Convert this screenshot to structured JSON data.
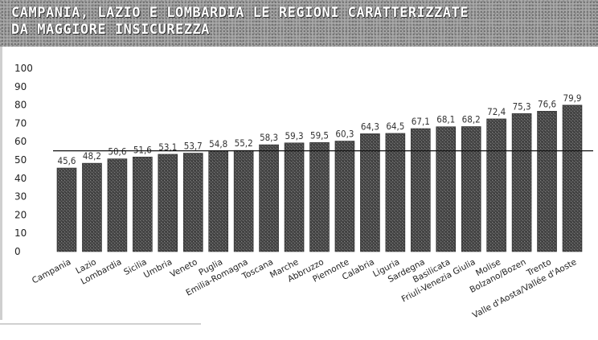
{
  "header": {
    "title_line1": "CAMPANIA, LAZIO E LOMBARDIA LE REGIONI CARATTERIZZATE",
    "title_line2": "DA MAGGIORE INSICUREZZA"
  },
  "chart_data": {
    "type": "bar",
    "title": "CAMPANIA, LAZIO E LOMBARDIA LE REGIONI CARATTERIZZATE DA MAGGIORE INSICUREZZA",
    "categories": [
      "Campania",
      "Lazio",
      "Lombardia",
      "Sicilia",
      "Umbria",
      "Veneto",
      "Puglia",
      "Emilia-Romagna",
      "Toscana",
      "Marche",
      "Abbruzzo",
      "Piemonte",
      "Calabria",
      "Liguria",
      "Sardegna",
      "Basilicata",
      "Friuli-Venezia Giulia",
      "Molise",
      "Bolzano/Bozen",
      "Trento",
      "Valle d'Aosta/Vallée d'Aoste"
    ],
    "values": [
      45.6,
      48.2,
      50.6,
      51.6,
      53.1,
      53.7,
      54.8,
      55.2,
      58.3,
      59.3,
      59.5,
      60.3,
      64.3,
      64.5,
      67.1,
      68.1,
      68.2,
      72.4,
      75.3,
      76.6,
      79.9
    ],
    "value_labels": [
      "45,6",
      "48,2",
      "50,6",
      "51,6",
      "53,1",
      "53,7",
      "54,8",
      "55,2",
      "58,3",
      "59,3",
      "59,5",
      "60,3",
      "64,3",
      "64,5",
      "67,1",
      "68,1",
      "68,2",
      "72,4",
      "75,3",
      "76,6",
      "79,9"
    ],
    "yticks": [
      0,
      10,
      20,
      30,
      40,
      50,
      60,
      70,
      80,
      90,
      100
    ],
    "ylim": [
      0,
      100
    ],
    "reference_line": 55,
    "bar_color": "#4a4a4a",
    "reference_color": "#111111",
    "grid": false,
    "legend": "none"
  }
}
